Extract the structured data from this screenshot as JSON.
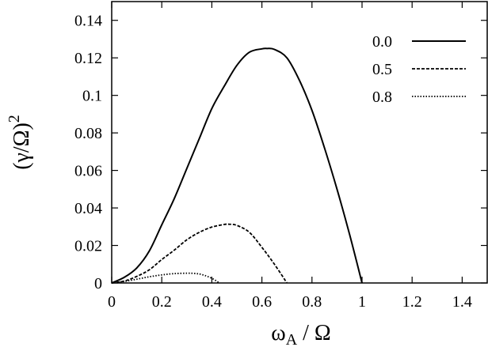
{
  "chart_data": {
    "type": "line",
    "title": "",
    "xlabel_main": "ω",
    "xlabel_sub": "A",
    "xlabel_rest": " / Ω",
    "ylabel_main": "(γ/Ω)",
    "ylabel_sup": "2",
    "xlim": [
      0,
      1.5
    ],
    "ylim": [
      0,
      0.15
    ],
    "xticks": [
      "0",
      "0.2",
      "0.4",
      "0.6",
      "0.8",
      "1",
      "1.2",
      "1.4"
    ],
    "xtick_values": [
      0,
      0.2,
      0.4,
      0.6,
      0.8,
      1.0,
      1.2,
      1.4
    ],
    "yticks": [
      "0",
      "0.02",
      "0.04",
      "0.06",
      "0.08",
      "0.1",
      "0.12",
      "0.14"
    ],
    "ytick_values": [
      0,
      0.02,
      0.04,
      0.06,
      0.08,
      0.1,
      0.12,
      0.14
    ],
    "grid": false,
    "legend_position": "top-right",
    "series": [
      {
        "name": "0.0",
        "style": "solid",
        "x": [
          0,
          0.05,
          0.1,
          0.15,
          0.2,
          0.25,
          0.3,
          0.35,
          0.4,
          0.45,
          0.5,
          0.55,
          0.6,
          0.62,
          0.65,
          0.7,
          0.75,
          0.8,
          0.85,
          0.9,
          0.95,
          1.0
        ],
        "y": [
          0,
          0.003,
          0.008,
          0.017,
          0.031,
          0.045,
          0.061,
          0.077,
          0.093,
          0.105,
          0.116,
          0.123,
          0.1248,
          0.125,
          0.1245,
          0.12,
          0.108,
          0.092,
          0.072,
          0.05,
          0.026,
          0
        ]
      },
      {
        "name": "0.5",
        "style": "dashed",
        "x": [
          0,
          0.05,
          0.1,
          0.15,
          0.2,
          0.25,
          0.3,
          0.35,
          0.4,
          0.45,
          0.47,
          0.5,
          0.55,
          0.6,
          0.65,
          0.7
        ],
        "y": [
          0,
          0.001,
          0.0035,
          0.007,
          0.0125,
          0.0175,
          0.023,
          0.027,
          0.0298,
          0.0312,
          0.0313,
          0.0307,
          0.027,
          0.019,
          0.01,
          0
        ]
      },
      {
        "name": "0.8",
        "style": "dotted",
        "x": [
          0,
          0.05,
          0.1,
          0.15,
          0.2,
          0.25,
          0.3,
          0.33,
          0.36,
          0.4,
          0.43
        ],
        "y": [
          0,
          0.0008,
          0.002,
          0.0033,
          0.0043,
          0.005,
          0.0052,
          0.0051,
          0.0045,
          0.0025,
          0
        ]
      }
    ]
  }
}
